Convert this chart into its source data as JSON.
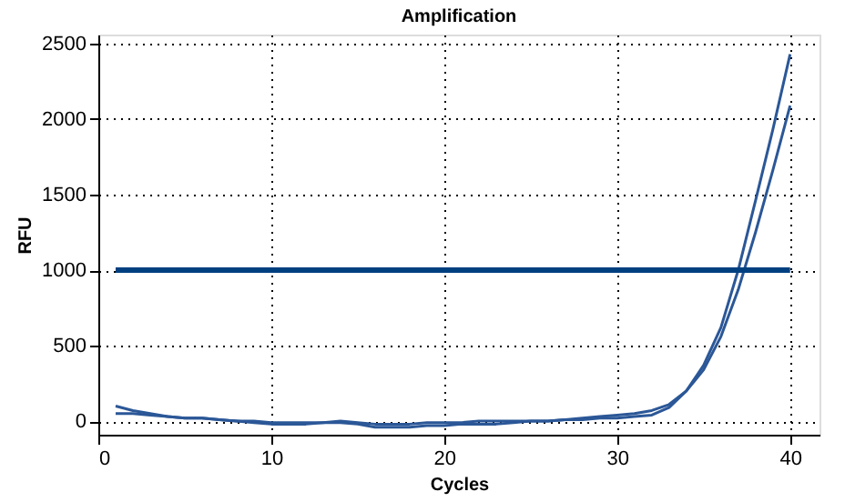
{
  "chart_data": {
    "type": "line",
    "title": "Amplification",
    "xlabel": "Cycles",
    "ylabel": "RFU",
    "x": [
      1,
      2,
      3,
      4,
      5,
      6,
      7,
      8,
      9,
      10,
      11,
      12,
      13,
      14,
      15,
      16,
      17,
      18,
      19,
      20,
      21,
      22,
      23,
      24,
      25,
      26,
      27,
      28,
      29,
      30,
      31,
      32,
      33,
      34,
      35,
      36,
      37,
      38,
      39,
      40
    ],
    "series": [
      {
        "color": "#2b5797",
        "values": [
          100,
          70,
          50,
          30,
          20,
          20,
          10,
          0,
          -10,
          -20,
          -20,
          -20,
          -10,
          -10,
          -20,
          -40,
          -40,
          -40,
          -30,
          -30,
          -20,
          -20,
          -20,
          -10,
          0,
          0,
          10,
          20,
          30,
          40,
          50,
          70,
          110,
          200,
          370,
          620,
          1000,
          1460,
          1930,
          2430
        ]
      },
      {
        "color": "#2b5797",
        "values": [
          50,
          50,
          40,
          30,
          20,
          20,
          10,
          0,
          0,
          -10,
          -10,
          -10,
          -10,
          0,
          -10,
          -20,
          -20,
          -20,
          -10,
          -10,
          -10,
          0,
          0,
          0,
          0,
          0,
          10,
          10,
          20,
          20,
          30,
          40,
          90,
          200,
          340,
          560,
          870,
          1250,
          1660,
          2090
        ]
      },
      {
        "color": "#004080",
        "x": [
          1,
          40
        ],
        "values": [
          1000,
          1000
        ]
      }
    ],
    "xlim": [
      0,
      41.7
    ],
    "ylim": [
      -90,
      2560
    ],
    "xticks": [
      0,
      10,
      20,
      30,
      40
    ],
    "yticks": [
      0,
      500,
      1000,
      1500,
      2000,
      2500
    ],
    "grid": true,
    "marker": "none",
    "line_style": "solid"
  }
}
